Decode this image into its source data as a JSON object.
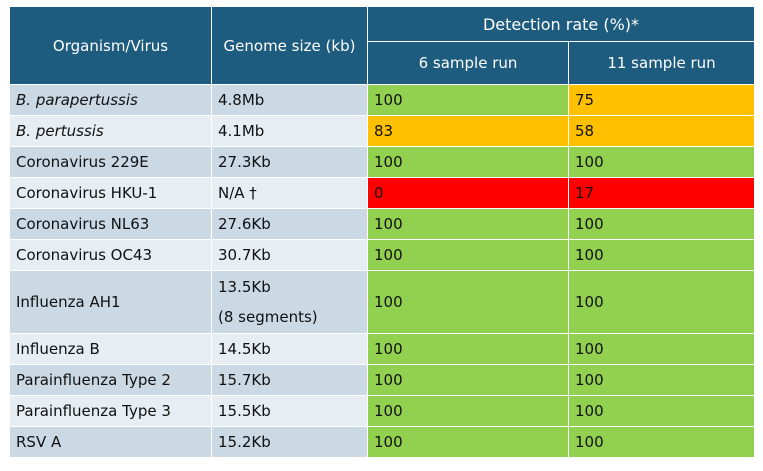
{
  "header": {
    "organism": "Organism/Virus",
    "genome": "Genome size (kb)",
    "detection": "Detection rate (%)*",
    "run6": "6 sample run",
    "run11": "11 sample run"
  },
  "colors": {
    "header": "#1d5b7f",
    "row_light": "#cbd9e5",
    "row_lighter": "#e6edf3",
    "high": "#92d050",
    "mid": "#ffc000",
    "low": "#ff0000"
  },
  "rows": [
    {
      "name": "B. parapertussis",
      "size": "4.8Mb",
      "r6": "100",
      "r11": "75"
    },
    {
      "name": "B. pertussis",
      "size": "4.1Mb",
      "r6": "83",
      "r11": "58"
    },
    {
      "name": "Coronavirus 229E",
      "size": "27.3Kb",
      "r6": "100",
      "r11": "100"
    },
    {
      "name": "Coronavirus HKU-1",
      "size": "N/A †",
      "r6": "0",
      "r11": "17"
    },
    {
      "name": "Coronavirus NL63",
      "size": "27.6Kb",
      "r6": "100",
      "r11": "100"
    },
    {
      "name": "Coronavirus OC43",
      "size": "30.7Kb",
      "r6": "100",
      "r11": "100"
    },
    {
      "name": "Influenza AH1",
      "size": "13.5Kb",
      "size2": "(8 segments)",
      "r6": "100",
      "r11": "100"
    },
    {
      "name": "Influenza B",
      "size": "14.5Kb",
      "r6": "100",
      "r11": "100"
    },
    {
      "name": "Parainfluenza Type 2",
      "size": "15.7Kb",
      "r6": "100",
      "r11": "100"
    },
    {
      "name": "Parainfluenza Type 3",
      "size": "15.5Kb",
      "r6": "100",
      "r11": "100"
    },
    {
      "name": "RSV A",
      "size": "15.2Kb",
      "r6": "100",
      "r11": "100"
    }
  ]
}
